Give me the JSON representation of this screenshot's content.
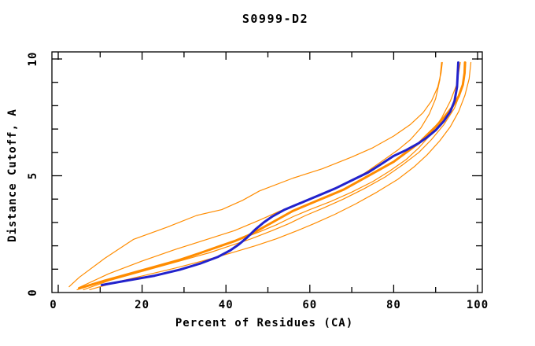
{
  "window": {
    "background_color": "#ffffff"
  },
  "chart_data": {
    "type": "line",
    "title": "S0999-D2",
    "xlabel": "Percent of Residues (CA)",
    "ylabel": "Distance Cutoff, A",
    "xlim": [
      0,
      100
    ],
    "ylim": [
      0,
      10
    ],
    "grid": false,
    "legend": "none",
    "x_major_ticks": [
      0,
      20,
      40,
      60,
      80,
      100
    ],
    "x_tick_labels": [
      "0",
      "20",
      "40",
      "60",
      "80",
      "100"
    ],
    "x_minor_step": 10,
    "y_major_ticks": [
      0,
      5,
      10
    ],
    "y_tick_labels": [
      "0",
      "5",
      "10"
    ],
    "y_minor_step": 1,
    "frame_color": "#000000",
    "series": [
      {
        "name": "model-orange-thin-1",
        "color": "#ff8c00",
        "width": 1.2,
        "points": [
          [
            2.6,
            0.25
          ],
          [
            5,
            0.65
          ],
          [
            11,
            1.45
          ],
          [
            18,
            2.28
          ],
          [
            26,
            2.8
          ],
          [
            33,
            3.3
          ],
          [
            39,
            3.55
          ],
          [
            44,
            3.95
          ],
          [
            48,
            4.35
          ],
          [
            56,
            4.9
          ],
          [
            63,
            5.3
          ],
          [
            70,
            5.8
          ],
          [
            75,
            6.2
          ],
          [
            80,
            6.7
          ],
          [
            84,
            7.2
          ],
          [
            87,
            7.7
          ],
          [
            89,
            8.2
          ],
          [
            90.5,
            8.8
          ],
          [
            91.3,
            9.4
          ],
          [
            91.6,
            9.85
          ]
        ]
      },
      {
        "name": "model-orange-thin-2",
        "color": "#ff8c00",
        "width": 1.2,
        "points": [
          [
            4.8,
            0.2
          ],
          [
            12,
            0.8
          ],
          [
            20,
            1.35
          ],
          [
            28,
            1.85
          ],
          [
            35,
            2.25
          ],
          [
            42,
            2.65
          ],
          [
            48,
            3.1
          ],
          [
            53,
            3.5
          ],
          [
            58,
            3.85
          ],
          [
            63,
            4.2
          ],
          [
            68,
            4.6
          ],
          [
            73,
            5.1
          ],
          [
            77,
            5.6
          ],
          [
            81,
            6.1
          ],
          [
            84,
            6.55
          ],
          [
            86.5,
            7.05
          ],
          [
            88.5,
            7.65
          ],
          [
            90,
            8.3
          ],
          [
            91,
            9.1
          ],
          [
            91.4,
            9.85
          ]
        ]
      },
      {
        "name": "model-orange-thin-3",
        "color": "#ff8c00",
        "width": 1.2,
        "points": [
          [
            4.5,
            0.12
          ],
          [
            10,
            0.45
          ],
          [
            16,
            0.75
          ],
          [
            22,
            1.05
          ],
          [
            28,
            1.35
          ],
          [
            34,
            1.68
          ],
          [
            38,
            1.95
          ],
          [
            43,
            2.25
          ],
          [
            48,
            2.6
          ],
          [
            52,
            2.9
          ],
          [
            56,
            3.25
          ],
          [
            60,
            3.55
          ],
          [
            65,
            3.9
          ],
          [
            70,
            4.3
          ],
          [
            75,
            4.75
          ],
          [
            79,
            5.2
          ],
          [
            83,
            5.7
          ],
          [
            86,
            6.2
          ],
          [
            89,
            6.8
          ],
          [
            91.5,
            7.5
          ],
          [
            93.5,
            8.2
          ],
          [
            95,
            8.9
          ],
          [
            95.9,
            9.85
          ]
        ]
      },
      {
        "name": "model-orange-thin-4",
        "color": "#ff8c00",
        "width": 1.2,
        "points": [
          [
            6,
            0.12
          ],
          [
            12,
            0.5
          ],
          [
            18,
            0.8
          ],
          [
            24,
            1.1
          ],
          [
            30,
            1.4
          ],
          [
            36,
            1.7
          ],
          [
            41,
            2.0
          ],
          [
            46,
            2.3
          ],
          [
            51,
            2.65
          ],
          [
            55,
            2.95
          ],
          [
            59,
            3.3
          ],
          [
            63,
            3.6
          ],
          [
            68,
            4.0
          ],
          [
            73,
            4.45
          ],
          [
            78,
            4.95
          ],
          [
            82,
            5.45
          ],
          [
            86,
            6.0
          ],
          [
            89,
            6.55
          ],
          [
            92,
            7.2
          ],
          [
            94.5,
            7.9
          ],
          [
            96,
            8.6
          ],
          [
            96.9,
            9.3
          ],
          [
            97.2,
            9.85
          ]
        ]
      },
      {
        "name": "model-orange-thin-5",
        "color": "#ff8c00",
        "width": 1.2,
        "points": [
          [
            7.5,
            0.12
          ],
          [
            14,
            0.45
          ],
          [
            21,
            0.75
          ],
          [
            28,
            1.05
          ],
          [
            35,
            1.38
          ],
          [
            41,
            1.68
          ],
          [
            47,
            2.0
          ],
          [
            52,
            2.3
          ],
          [
            57,
            2.65
          ],
          [
            61,
            2.95
          ],
          [
            66,
            3.35
          ],
          [
            71,
            3.8
          ],
          [
            76,
            4.3
          ],
          [
            81,
            4.85
          ],
          [
            85,
            5.4
          ],
          [
            88,
            5.9
          ],
          [
            91,
            6.5
          ],
          [
            93.5,
            7.1
          ],
          [
            95.5,
            7.75
          ],
          [
            97,
            8.45
          ],
          [
            98,
            9.15
          ],
          [
            98.4,
            9.85
          ]
        ]
      },
      {
        "name": "model-orange-thick",
        "color": "#ff8c00",
        "width": 3,
        "points": [
          [
            5,
            0.18
          ],
          [
            11,
            0.5
          ],
          [
            17,
            0.8
          ],
          [
            23,
            1.1
          ],
          [
            29,
            1.4
          ],
          [
            34,
            1.7
          ],
          [
            38,
            1.95
          ],
          [
            42,
            2.2
          ],
          [
            46,
            2.5
          ],
          [
            50,
            2.9
          ],
          [
            53,
            3.2
          ],
          [
            56,
            3.5
          ],
          [
            60,
            3.8
          ],
          [
            64,
            4.1
          ],
          [
            68,
            4.4
          ],
          [
            72,
            4.8
          ],
          [
            76,
            5.2
          ],
          [
            80,
            5.6
          ],
          [
            83,
            6.0
          ],
          [
            86,
            6.4
          ],
          [
            88,
            6.75
          ],
          [
            90,
            7.1
          ],
          [
            92,
            7.5
          ],
          [
            94,
            7.95
          ],
          [
            95.5,
            8.4
          ],
          [
            96.5,
            8.9
          ],
          [
            96.9,
            9.4
          ],
          [
            97,
            9.85
          ]
        ]
      },
      {
        "name": "model-blue-thick",
        "color": "#2222cc",
        "width": 3,
        "points": [
          [
            10.4,
            0.32
          ],
          [
            16,
            0.5
          ],
          [
            23,
            0.72
          ],
          [
            29,
            0.98
          ],
          [
            34,
            1.25
          ],
          [
            38,
            1.52
          ],
          [
            41,
            1.8
          ],
          [
            43,
            2.05
          ],
          [
            45,
            2.35
          ],
          [
            47,
            2.7
          ],
          [
            49,
            3.0
          ],
          [
            51,
            3.25
          ],
          [
            54,
            3.55
          ],
          [
            58,
            3.85
          ],
          [
            62,
            4.15
          ],
          [
            66,
            4.45
          ],
          [
            70,
            4.8
          ],
          [
            74,
            5.15
          ],
          [
            77,
            5.5
          ],
          [
            80,
            5.85
          ],
          [
            83,
            6.1
          ],
          [
            86,
            6.4
          ],
          [
            88,
            6.65
          ],
          [
            90,
            6.95
          ],
          [
            92,
            7.35
          ],
          [
            93.5,
            7.75
          ],
          [
            94.5,
            8.2
          ],
          [
            95.1,
            8.8
          ],
          [
            95.4,
            9.85
          ]
        ]
      }
    ]
  }
}
